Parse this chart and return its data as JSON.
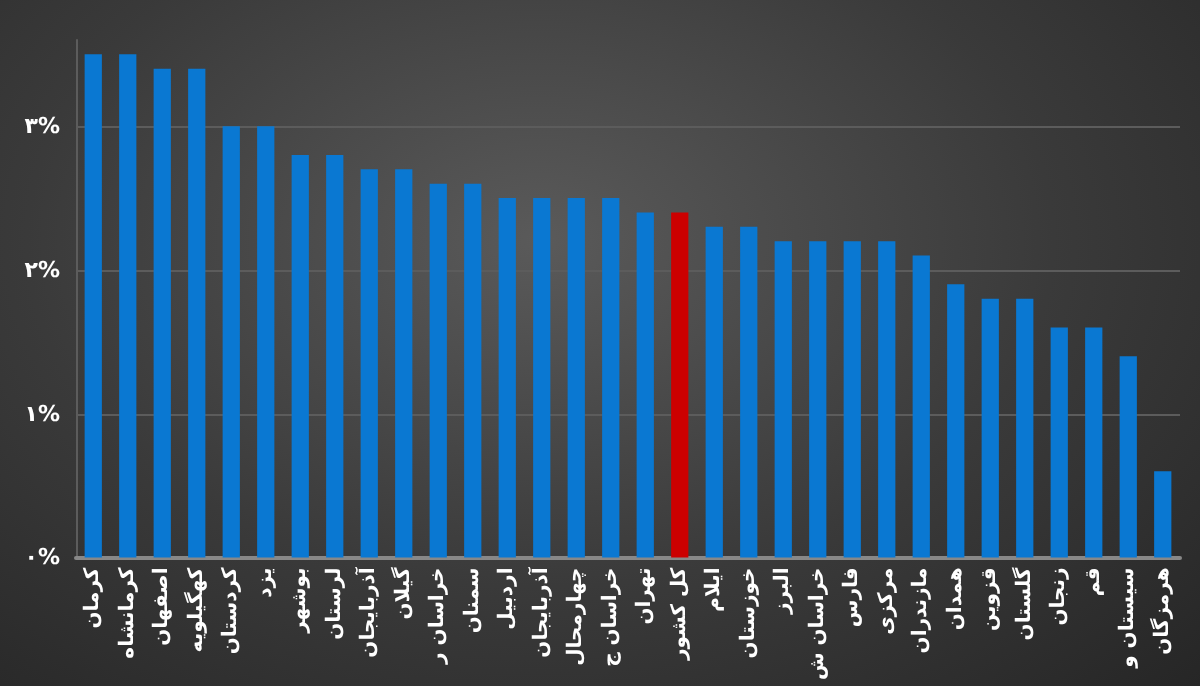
{
  "chart_data": {
    "type": "bar",
    "categories": [
      "کرمان",
      "کرمانشاه",
      "اصفهان",
      "کهگیلویه",
      "کردستان",
      "یزد",
      "بوشهر",
      "لرستان",
      "آذربایجان",
      "گیلان",
      "خراسان ر",
      "سمنان",
      "اردبیل",
      "آذربایجان",
      "چهارمحال",
      "خراسان ج",
      "تهران",
      "کل کشور",
      "ایلام",
      "خوزستان",
      "البرز",
      "خراسان ش",
      "فارس",
      "مرکزی",
      "مازندران",
      "همدان",
      "قزوین",
      "گلستان",
      "زنجان",
      "قم",
      "سیستان و",
      "هرمزگان"
    ],
    "values": [
      3.5,
      3.5,
      3.4,
      3.4,
      3.0,
      3.0,
      2.8,
      2.8,
      2.7,
      2.7,
      2.6,
      2.6,
      2.5,
      2.5,
      2.5,
      2.5,
      2.4,
      2.4,
      2.3,
      2.3,
      2.2,
      2.2,
      2.2,
      2.2,
      2.1,
      1.9,
      1.8,
      1.8,
      1.6,
      1.6,
      1.4,
      0.6
    ],
    "colors": [
      "#0a78d2",
      "#0a78d2",
      "#0a78d2",
      "#0a78d2",
      "#0a78d2",
      "#0a78d2",
      "#0a78d2",
      "#0a78d2",
      "#0a78d2",
      "#0a78d2",
      "#0a78d2",
      "#0a78d2",
      "#0a78d2",
      "#0a78d2",
      "#0a78d2",
      "#0a78d2",
      "#0a78d2",
      "#cc0000",
      "#0a78d2",
      "#0a78d2",
      "#0a78d2",
      "#0a78d2",
      "#0a78d2",
      "#0a78d2",
      "#0a78d2",
      "#0a78d2",
      "#0a78d2",
      "#0a78d2",
      "#0a78d2",
      "#0a78d2",
      "#0a78d2",
      "#0a78d2"
    ],
    "ylim": [
      0,
      3.6
    ],
    "yticks": [
      {
        "value": 0,
        "label": "۰%"
      },
      {
        "value": 1,
        "label": "۱%"
      },
      {
        "value": 2,
        "label": "۲%"
      },
      {
        "value": 3,
        "label": "۳%"
      }
    ],
    "grid": "y"
  }
}
